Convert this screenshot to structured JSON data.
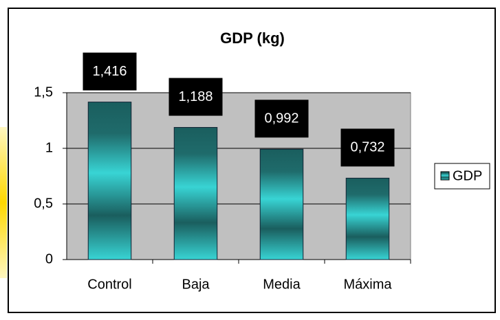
{
  "chart_data": {
    "type": "bar",
    "title": "GDP (kg)",
    "categories": [
      "Control",
      "Baja",
      "Media",
      "Máxima"
    ],
    "series": [
      {
        "name": "GDP",
        "color": "#1f6b6b",
        "values": [
          1.416,
          1.188,
          0.992,
          0.732
        ],
        "value_labels": [
          "1,416",
          "1,188",
          "0,992",
          "0,732"
        ]
      }
    ],
    "ylim": [
      0,
      1.5
    ],
    "yticks": [
      0,
      {
        "value": 0.5,
        "label": "0,5"
      },
      1,
      {
        "value": 1.5,
        "label": "1,5"
      }
    ],
    "grid": true,
    "legend": "right"
  }
}
